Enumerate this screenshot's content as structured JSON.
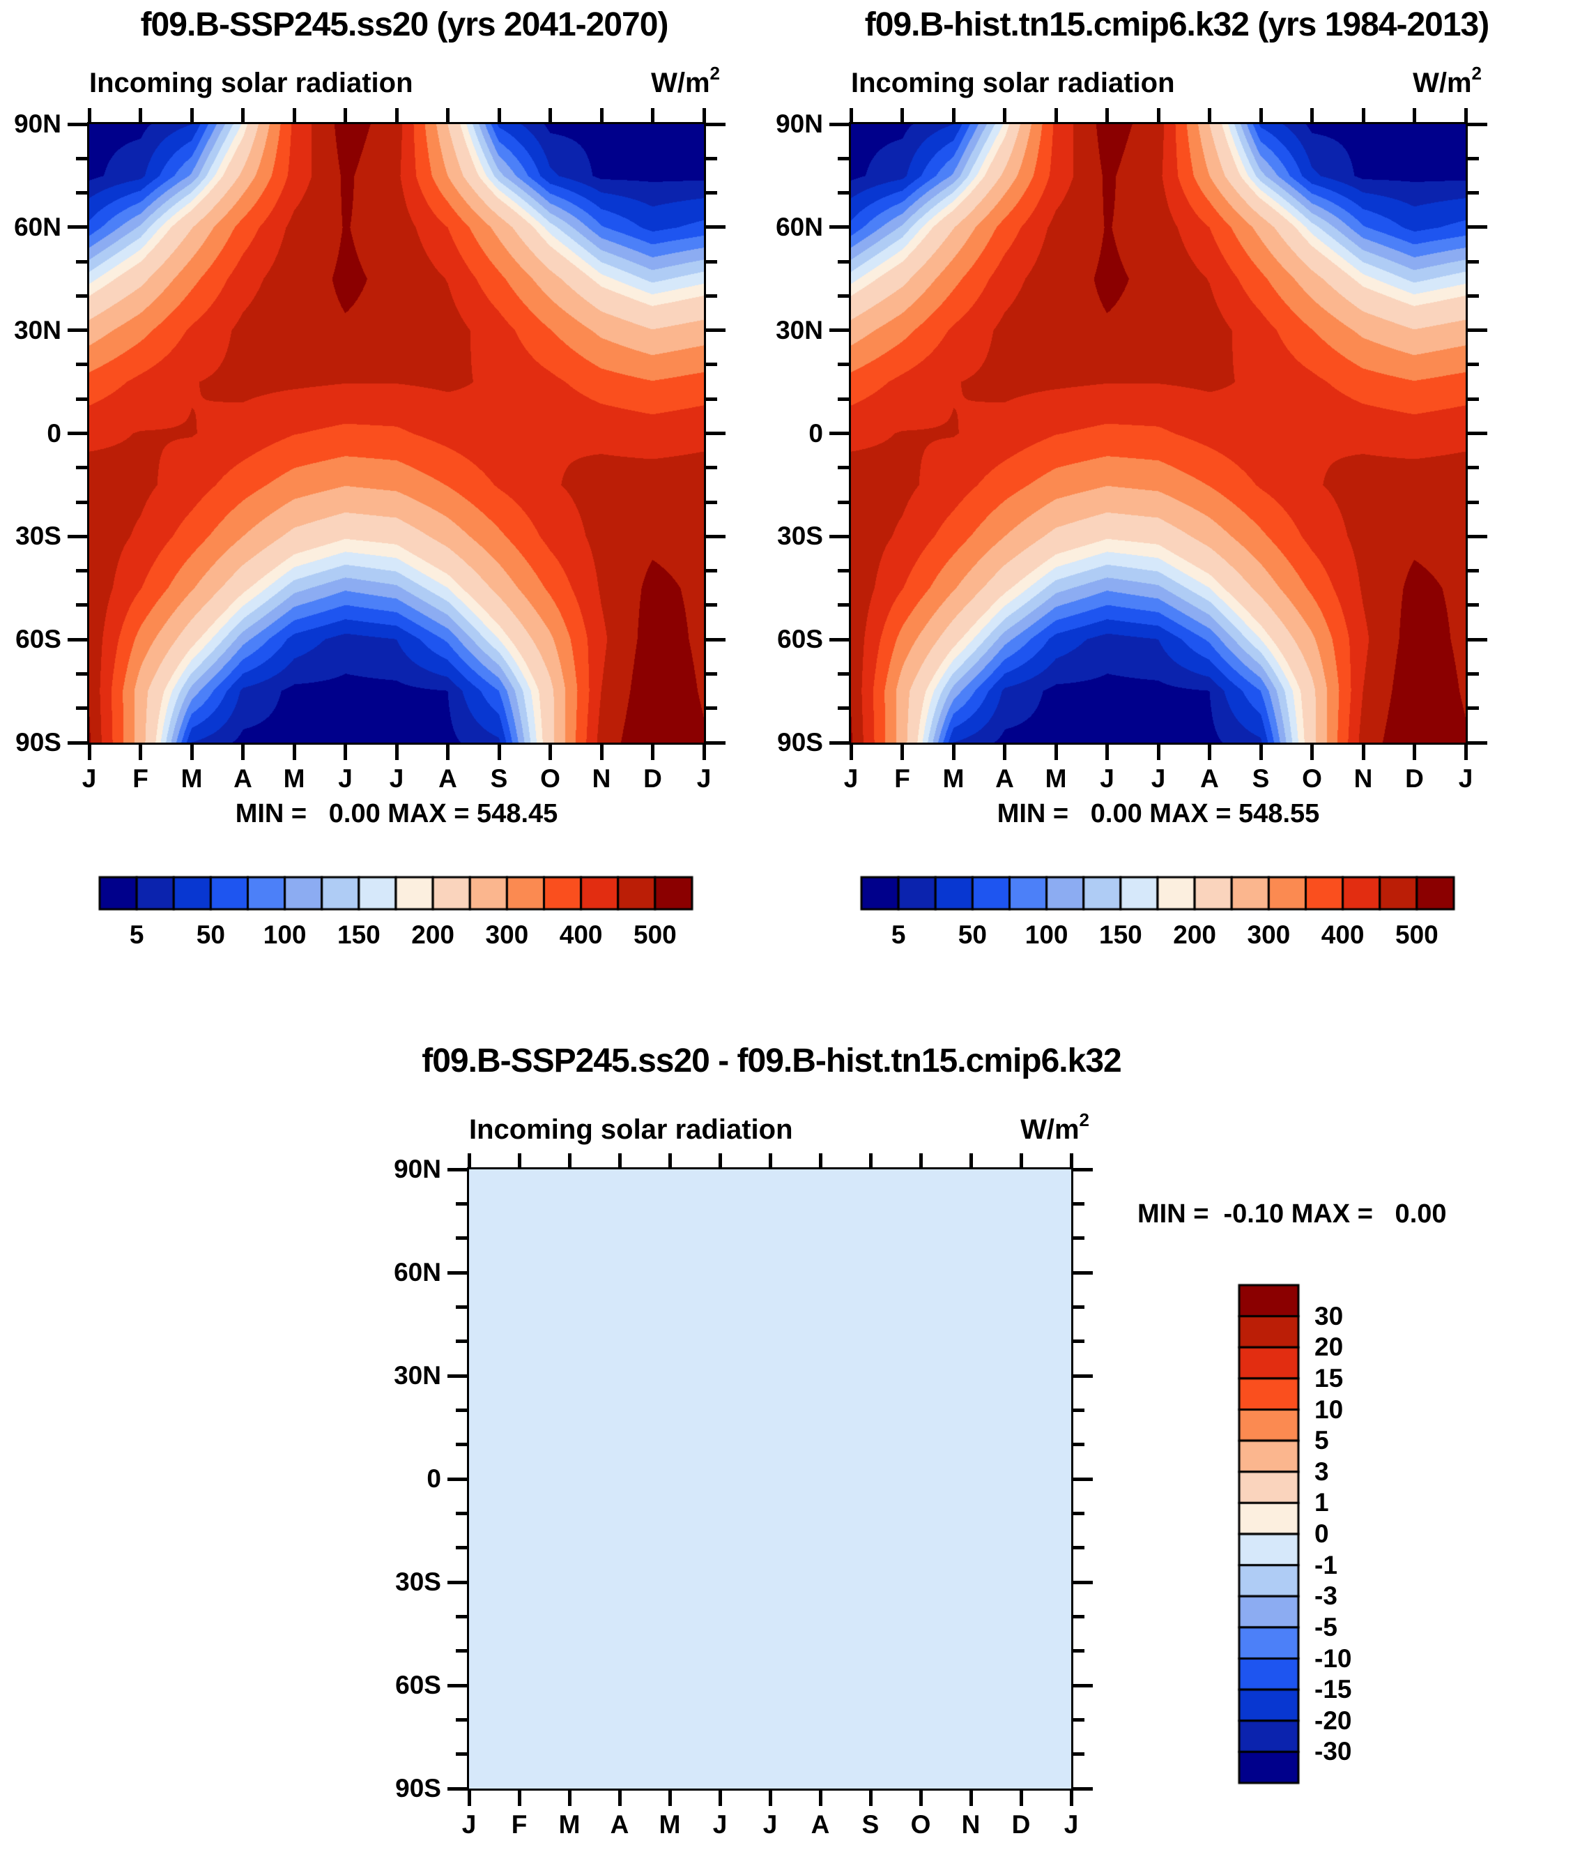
{
  "titles": {
    "panel_a": "f09.B-SSP245.ss20 (yrs 2041-2070)",
    "panel_b": "f09.B-hist.tn15.cmip6.k32 (yrs 1984-2013)",
    "panel_diff": "f09.B-SSP245.ss20 - f09.B-hist.tn15.cmip6.k32"
  },
  "subtitle": "Incoming solar radiation",
  "units": {
    "base": "W/m",
    "exponent": "2"
  },
  "stats": {
    "panel_a": "MIN =   0.00 MAX = 548.45",
    "panel_b": "MIN =   0.00 MAX = 548.55",
    "panel_diff": "MIN =  -0.10 MAX =   0.00"
  },
  "axes": {
    "month_labels": [
      "J",
      "F",
      "M",
      "A",
      "M",
      "J",
      "J",
      "A",
      "S",
      "O",
      "N",
      "D",
      "J"
    ],
    "lat_labels": [
      "90N",
      "60N",
      "30N",
      "0",
      "30S",
      "60S",
      "90S"
    ],
    "minor_ticks_between_major": 2
  },
  "palette": {
    "colors": [
      "#00008B",
      "#0B23AE",
      "#0837D1",
      "#1E55F0",
      "#4C80F8",
      "#8CACF2",
      "#AFCCF5",
      "#D6E8FA",
      "#FCEFDF",
      "#FAD4BD",
      "#FBB68E",
      "#FB8A51",
      "#FA4F1E",
      "#E22D11",
      "#BB1E06",
      "#8B0000"
    ]
  },
  "colorbar_main": {
    "levels": [
      5,
      25,
      50,
      75,
      100,
      125,
      150,
      175,
      200,
      250,
      300,
      350,
      400,
      450,
      500
    ],
    "tick_labels": [
      "5",
      "50",
      "100",
      "150",
      "200",
      "300",
      "400",
      "500"
    ],
    "tick_boundary_indices": [
      1,
      3,
      5,
      7,
      9,
      11,
      13,
      15
    ]
  },
  "colorbar_diff": {
    "levels": [
      -30,
      -20,
      -15,
      -10,
      -5,
      -3,
      -1,
      0,
      1,
      3,
      5,
      10,
      15,
      20,
      30
    ],
    "tick_labels_top_to_bottom": [
      "30",
      "20",
      "15",
      "10",
      "5",
      "3",
      "1",
      "0",
      "-1",
      "-3",
      "-5",
      "-10",
      "-15",
      "-20",
      "-30"
    ]
  },
  "chart_data": [
    {
      "type": "heatmap",
      "panel": "a",
      "title": "f09.B-SSP245.ss20 (yrs 2041-2070)",
      "subtitle": "Incoming solar radiation",
      "units": "W/m2",
      "x": [
        "J",
        "F",
        "M",
        "A",
        "M",
        "J",
        "J",
        "A",
        "S",
        "O",
        "N",
        "D",
        "J"
      ],
      "y_latitudes": [
        90,
        75,
        60,
        45,
        30,
        15,
        0,
        -15,
        -30,
        -45,
        -60,
        -75,
        -90
      ],
      "values": [
        [
          0,
          0,
          25,
          180,
          412,
          524,
          475,
          250,
          45,
          0,
          0,
          0,
          0
        ],
        [
          0,
          18,
          105,
          262,
          420,
          508,
          462,
          300,
          135,
          30,
          0,
          0,
          0
        ],
        [
          58,
          130,
          248,
          370,
          465,
          502,
          480,
          400,
          282,
          162,
          78,
          42,
          58
        ],
        [
          165,
          235,
          335,
          428,
          483,
          506,
          492,
          448,
          362,
          268,
          185,
          142,
          165
        ],
        [
          272,
          333,
          408,
          462,
          488,
          497,
          492,
          472,
          422,
          352,
          288,
          252,
          272
        ],
        [
          368,
          412,
          448,
          462,
          458,
          452,
          452,
          458,
          442,
          412,
          372,
          352,
          368
        ],
        [
          438,
          452,
          452,
          432,
          402,
          388,
          392,
          418,
          442,
          448,
          438,
          428,
          438
        ],
        [
          472,
          462,
          425,
          372,
          325,
          302,
          312,
          352,
          405,
          445,
          468,
          472,
          472
        ],
        [
          482,
          442,
          375,
          300,
          235,
          205,
          215,
          270,
          340,
          415,
          465,
          490,
          482
        ],
        [
          490,
          402,
          305,
          210,
          135,
          105,
          120,
          175,
          265,
          360,
          455,
          512,
          490
        ],
        [
          490,
          332,
          215,
          110,
          40,
          15,
          25,
          80,
          175,
          290,
          440,
          525,
          490
        ],
        [
          495,
          272,
          115,
          20,
          0,
          0,
          0,
          5,
          75,
          235,
          450,
          538,
          495
        ],
        [
          505,
          272,
          25,
          0,
          0,
          0,
          0,
          0,
          20,
          230,
          470,
          548,
          505
        ]
      ],
      "contour_levels": [
        5,
        25,
        50,
        75,
        100,
        125,
        150,
        175,
        200,
        250,
        300,
        350,
        400,
        450,
        500
      ],
      "min": 0.0,
      "max": 548.45
    },
    {
      "type": "heatmap",
      "panel": "b",
      "title": "f09.B-hist.tn15.cmip6.k32 (yrs 1984-2013)",
      "subtitle": "Incoming solar radiation",
      "units": "W/m2",
      "x": [
        "J",
        "F",
        "M",
        "A",
        "M",
        "J",
        "J",
        "A",
        "S",
        "O",
        "N",
        "D",
        "J"
      ],
      "y_latitudes": [
        90,
        75,
        60,
        45,
        30,
        15,
        0,
        -15,
        -30,
        -45,
        -60,
        -75,
        -90
      ],
      "values_same_as_panel": "a",
      "contour_levels": [
        5,
        25,
        50,
        75,
        100,
        125,
        150,
        175,
        200,
        250,
        300,
        350,
        400,
        450,
        500
      ],
      "min": 0.0,
      "max": 548.55
    },
    {
      "type": "heatmap",
      "panel": "diff",
      "title": "f09.B-SSP245.ss20 - f09.B-hist.tn15.cmip6.k32",
      "subtitle": "Incoming solar radiation",
      "units": "W/m2",
      "x": [
        "J",
        "F",
        "M",
        "A",
        "M",
        "J",
        "J",
        "A",
        "S",
        "O",
        "N",
        "D",
        "J"
      ],
      "y_latitudes": [
        90,
        -90
      ],
      "constant_value": -0.05,
      "contour_levels": [
        -30,
        -20,
        -15,
        -10,
        -5,
        -3,
        -1,
        0,
        1,
        3,
        5,
        10,
        15,
        20,
        30
      ],
      "min": -0.1,
      "max": 0.0
    }
  ]
}
